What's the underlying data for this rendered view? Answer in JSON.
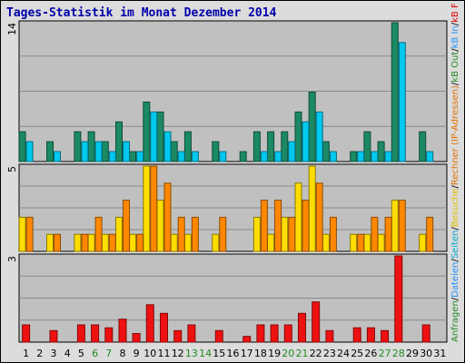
{
  "title": "Tages-Statistik im Monat Dezember 2014",
  "legend": [
    {
      "text": "Anfragen",
      "color": "#228b22"
    },
    {
      "text": "/",
      "color": "#000000"
    },
    {
      "text": "Dateien",
      "color": "#1e90ff"
    },
    {
      "text": "/",
      "color": "#000000"
    },
    {
      "text": "Seiten",
      "color": "#00aacc"
    },
    {
      "text": "/",
      "color": "#000000"
    },
    {
      "text": "Besuche",
      "color": "#e0c000"
    },
    {
      "text": "/",
      "color": "#000000"
    },
    {
      "text": "Rechner (IP-Adressen)",
      "color": "#e07000"
    },
    {
      "text": "/",
      "color": "#000000"
    },
    {
      "text": "kB Out",
      "color": "#228b22"
    },
    {
      "text": "/",
      "color": "#000000"
    },
    {
      "text": "kB In",
      "color": "#1e90ff"
    },
    {
      "text": "/",
      "color": "#000000"
    },
    {
      "text": "kB F",
      "color": "#e00000"
    }
  ],
  "chart_data": [
    {
      "type": "bar",
      "ymax": 14,
      "ymax_label": "14",
      "categories": [
        "1",
        "2",
        "3",
        "4",
        "5",
        "6",
        "7",
        "8",
        "9",
        "10",
        "11",
        "12",
        "13",
        "14",
        "15",
        "16",
        "17",
        "18",
        "19",
        "20",
        "21",
        "22",
        "23",
        "24",
        "25",
        "26",
        "27",
        "28",
        "29",
        "30",
        "31"
      ],
      "weekend_days": [
        6,
        7,
        13,
        14,
        20,
        21,
        27,
        28
      ],
      "series": [
        {
          "name": "Anfragen",
          "color": "#1b8a64",
          "values": [
            3,
            0,
            2,
            0,
            3,
            3,
            2,
            4,
            1,
            6,
            5,
            2,
            3,
            0,
            2,
            0,
            1,
            3,
            3,
            3,
            5,
            7,
            2,
            0,
            1,
            3,
            2,
            14,
            0,
            3,
            0
          ]
        },
        {
          "name": "Dateien",
          "color": "#00c8ee",
          "values": [
            2,
            0,
            1,
            0,
            2,
            2,
            1,
            2,
            1,
            5,
            3,
            1,
            1,
            0,
            1,
            0,
            0,
            1,
            1,
            2,
            4,
            5,
            1,
            0,
            1,
            1,
            1,
            12,
            0,
            1,
            0
          ]
        }
      ]
    },
    {
      "type": "bar",
      "ymax": 5,
      "ymax_label": "5",
      "categories": [
        "1",
        "2",
        "3",
        "4",
        "5",
        "6",
        "7",
        "8",
        "9",
        "10",
        "11",
        "12",
        "13",
        "14",
        "15",
        "16",
        "17",
        "18",
        "19",
        "20",
        "21",
        "22",
        "23",
        "24",
        "25",
        "26",
        "27",
        "28",
        "29",
        "30",
        "31"
      ],
      "series": [
        {
          "name": "Besuche",
          "color": "#ffdd00",
          "values": [
            2,
            0,
            1,
            0,
            1,
            1,
            1,
            2,
            1,
            5,
            3,
            1,
            1,
            0,
            1,
            0,
            0,
            2,
            1,
            2,
            4,
            5,
            1,
            0,
            1,
            1,
            1,
            3,
            0,
            1,
            0
          ]
        },
        {
          "name": "Rechner (IP-Adressen)",
          "color": "#ff8800",
          "values": [
            2,
            0,
            1,
            0,
            1,
            2,
            1,
            3,
            1,
            5,
            4,
            2,
            2,
            0,
            2,
            0,
            0,
            3,
            3,
            2,
            3,
            4,
            2,
            0,
            1,
            2,
            2,
            3,
            0,
            2,
            0
          ]
        }
      ]
    },
    {
      "type": "bar",
      "ymax": 3,
      "ymax_label": "3",
      "categories": [
        "1",
        "2",
        "3",
        "4",
        "5",
        "6",
        "7",
        "8",
        "9",
        "10",
        "11",
        "12",
        "13",
        "14",
        "15",
        "16",
        "17",
        "18",
        "19",
        "20",
        "21",
        "22",
        "23",
        "24",
        "25",
        "26",
        "27",
        "28",
        "29",
        "30",
        "31"
      ],
      "series": [
        {
          "name": "kB F",
          "color": "#ee1111",
          "values": [
            0.6,
            0,
            0.4,
            0,
            0.6,
            0.6,
            0.5,
            0.8,
            0.3,
            1.3,
            1.0,
            0.4,
            0.6,
            0,
            0.4,
            0,
            0.2,
            0.6,
            0.6,
            0.6,
            1.0,
            1.4,
            0.4,
            0,
            0.5,
            0.5,
            0.4,
            3.0,
            0,
            0.6,
            0
          ]
        }
      ]
    }
  ]
}
